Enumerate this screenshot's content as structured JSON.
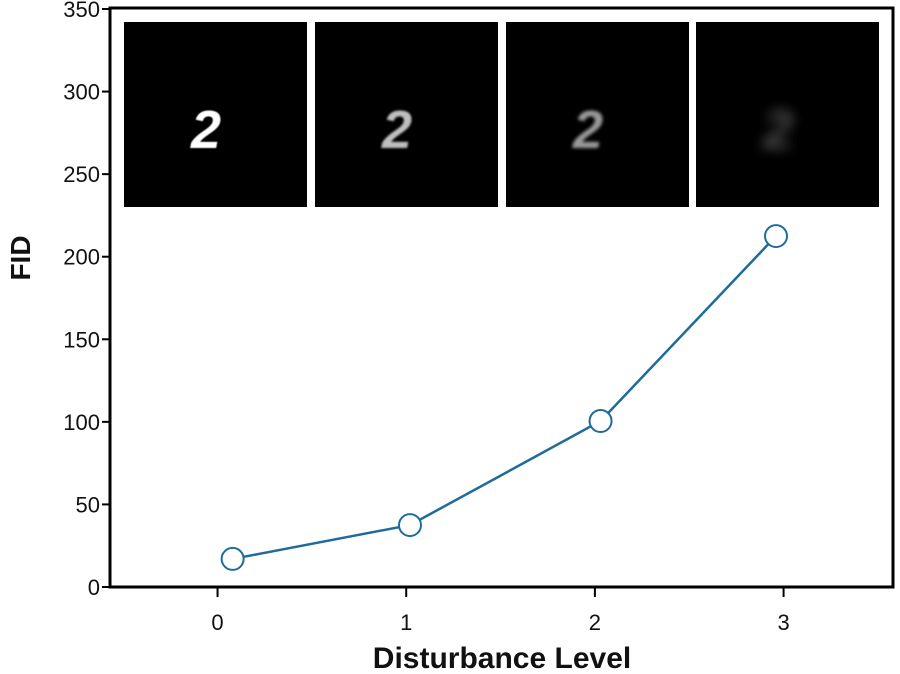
{
  "chart_data": {
    "type": "line",
    "xlabel": "Disturbance Level",
    "ylabel": "FID",
    "xlim": [
      -0.57,
      3.58
    ],
    "ylim": [
      0,
      350
    ],
    "xticks": [
      "0",
      "1",
      "2",
      "3"
    ],
    "yticks": [
      "0",
      "50",
      "100",
      "150",
      "200",
      "250",
      "300",
      "350"
    ],
    "grid": false,
    "series": [
      {
        "x": [
          0.08,
          1.02,
          2.03,
          2.96
        ],
        "y": [
          17,
          37.5,
          100.5,
          212.5
        ],
        "color": "#1f6b9a",
        "marker": "open-circle"
      }
    ],
    "inset_images": [
      {
        "glyph": "2",
        "brightness": 1.0,
        "blur": 0.6
      },
      {
        "glyph": "2",
        "brightness": 0.75,
        "blur": 1.0
      },
      {
        "glyph": "2",
        "brightness": 0.6,
        "blur": 1.6
      },
      {
        "glyph": "2",
        "brightness": 0.3,
        "blur": 6
      }
    ]
  }
}
